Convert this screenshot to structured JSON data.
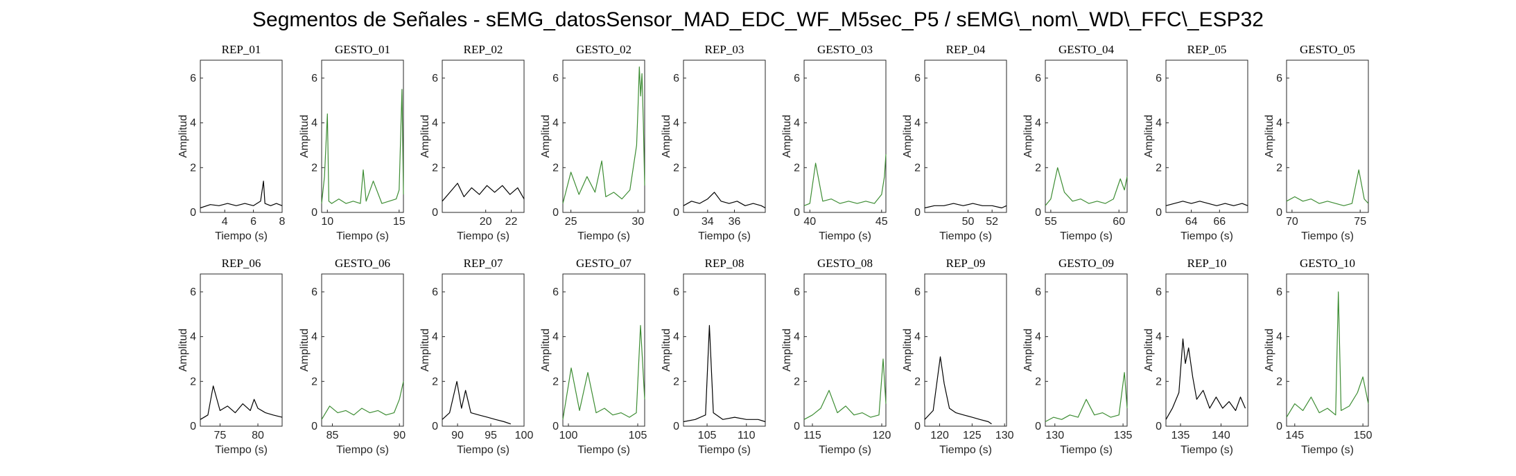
{
  "figure": {
    "title": "Segmentos de Señales - sEMG_datosSensor_MAD_EDC_WF_M5sec_P5 / sEMG\\_nom\\_WD\\_FFC\\_ESP32"
  },
  "colors": {
    "rep": "#000000",
    "gesto": "#3c8c32"
  },
  "chart_data": [
    {
      "type": "line",
      "title": "REP_01",
      "xlabel": "Tiempo (s)",
      "ylabel": "Amplitud",
      "xlim": [
        2.3,
        8
      ],
      "ylim": [
        0,
        6.8
      ],
      "xticks": [
        4,
        6,
        8
      ],
      "yticks": [
        0,
        2,
        4,
        6
      ],
      "color": "rep",
      "series": [
        {
          "x": [
            2.3,
            3.0,
            3.6,
            4.2,
            4.8,
            5.4,
            6.0,
            6.5,
            6.7,
            6.8,
            7.2,
            7.6,
            8.0
          ],
          "y": [
            0.2,
            0.35,
            0.3,
            0.4,
            0.3,
            0.4,
            0.3,
            0.5,
            1.4,
            0.4,
            0.3,
            0.4,
            0.3
          ]
        }
      ]
    },
    {
      "type": "line",
      "title": "GESTO_01",
      "xlabel": "Tiempo (s)",
      "ylabel": "Amplitud",
      "xlim": [
        9.6,
        15.3
      ],
      "ylim": [
        0,
        6.8
      ],
      "xticks": [
        10,
        15
      ],
      "yticks": [
        0,
        2,
        4,
        6
      ],
      "color": "gesto",
      "series": [
        {
          "x": [
            9.6,
            9.8,
            10.0,
            10.1,
            10.3,
            10.8,
            11.3,
            11.8,
            12.3,
            12.5,
            12.7,
            13.2,
            13.8,
            14.3,
            14.8,
            15.0,
            15.2,
            15.3
          ],
          "y": [
            0.4,
            1.6,
            4.4,
            0.5,
            0.4,
            0.6,
            0.4,
            0.5,
            0.4,
            1.9,
            0.5,
            1.4,
            0.4,
            0.5,
            0.6,
            1.0,
            5.5,
            0.8
          ]
        }
      ]
    },
    {
      "type": "line",
      "title": "REP_02",
      "xlabel": "Tiempo (s)",
      "ylabel": "Amplitud",
      "xlim": [
        16.6,
        23
      ],
      "ylim": [
        0,
        6.8
      ],
      "xticks": [
        20,
        22
      ],
      "yticks": [
        0,
        2,
        4,
        6
      ],
      "color": "rep",
      "series": [
        {
          "x": [
            16.6,
            17.2,
            17.8,
            18.3,
            18.9,
            19.5,
            20.1,
            20.7,
            21.3,
            21.9,
            22.5,
            23.0
          ],
          "y": [
            0.5,
            0.9,
            1.3,
            0.7,
            1.1,
            0.8,
            1.2,
            0.9,
            1.2,
            0.8,
            1.1,
            0.6
          ]
        }
      ]
    },
    {
      "type": "line",
      "title": "GESTO_02",
      "xlabel": "Tiempo (s)",
      "ylabel": "Amplitud",
      "xlim": [
        24.4,
        30.5
      ],
      "ylim": [
        0,
        6.8
      ],
      "xticks": [
        25,
        30
      ],
      "yticks": [
        0,
        2,
        4,
        6
      ],
      "color": "gesto",
      "series": [
        {
          "x": [
            24.4,
            25.0,
            25.6,
            26.2,
            26.8,
            27.3,
            27.6,
            28.2,
            28.8,
            29.4,
            29.9,
            30.0,
            30.1,
            30.2,
            30.3,
            30.4,
            30.5
          ],
          "y": [
            0.4,
            1.8,
            0.8,
            1.6,
            0.9,
            2.3,
            0.7,
            0.9,
            0.6,
            1.0,
            3.0,
            4.6,
            6.5,
            5.2,
            6.2,
            4.0,
            1.2
          ]
        }
      ]
    },
    {
      "type": "line",
      "title": "REP_03",
      "xlabel": "Tiempo (s)",
      "ylabel": "Amplitud",
      "xlim": [
        32.2,
        38.3
      ],
      "ylim": [
        0,
        6.8
      ],
      "xticks": [
        34,
        36
      ],
      "yticks": [
        0,
        2,
        4,
        6
      ],
      "color": "rep",
      "series": [
        {
          "x": [
            32.2,
            32.8,
            33.4,
            34.0,
            34.5,
            35.0,
            35.6,
            36.2,
            36.8,
            37.4,
            38.0,
            38.3
          ],
          "y": [
            0.3,
            0.5,
            0.4,
            0.6,
            0.9,
            0.5,
            0.4,
            0.5,
            0.3,
            0.4,
            0.3,
            0.2
          ]
        }
      ]
    },
    {
      "type": "line",
      "title": "GESTO_03",
      "xlabel": "Tiempo (s)",
      "ylabel": "Amplitud",
      "xlim": [
        39.6,
        45.3
      ],
      "ylim": [
        0,
        6.8
      ],
      "xticks": [
        40,
        45
      ],
      "yticks": [
        0,
        2,
        4,
        6
      ],
      "color": "gesto",
      "series": [
        {
          "x": [
            39.6,
            40.0,
            40.4,
            40.9,
            41.5,
            42.1,
            42.7,
            43.3,
            43.9,
            44.5,
            45.0,
            45.2,
            45.3
          ],
          "y": [
            0.3,
            0.4,
            2.2,
            0.5,
            0.6,
            0.4,
            0.5,
            0.4,
            0.5,
            0.4,
            0.8,
            1.6,
            2.6
          ]
        }
      ]
    },
    {
      "type": "line",
      "title": "REP_04",
      "xlabel": "Tiempo (s)",
      "ylabel": "Amplitud",
      "xlim": [
        46.4,
        53.2
      ],
      "ylim": [
        0,
        6.8
      ],
      "xticks": [
        50,
        52
      ],
      "yticks": [
        0,
        2,
        4,
        6
      ],
      "color": "rep",
      "series": [
        {
          "x": [
            46.4,
            47.2,
            48.0,
            48.8,
            49.6,
            50.4,
            51.2,
            52.0,
            52.8,
            53.2
          ],
          "y": [
            0.2,
            0.3,
            0.3,
            0.4,
            0.3,
            0.4,
            0.3,
            0.3,
            0.2,
            0.3
          ]
        }
      ]
    },
    {
      "type": "line",
      "title": "GESTO_04",
      "xlabel": "Tiempo (s)",
      "ylabel": "Amplitud",
      "xlim": [
        54.6,
        60.6
      ],
      "ylim": [
        0,
        6.8
      ],
      "xticks": [
        55,
        60
      ],
      "yticks": [
        0,
        2,
        4,
        6
      ],
      "color": "gesto",
      "series": [
        {
          "x": [
            54.6,
            55.0,
            55.5,
            56.0,
            56.6,
            57.2,
            57.8,
            58.4,
            59.0,
            59.6,
            60.1,
            60.4,
            60.6
          ],
          "y": [
            0.3,
            0.6,
            2.0,
            0.9,
            0.5,
            0.6,
            0.4,
            0.5,
            0.4,
            0.6,
            1.5,
            1.0,
            1.6
          ]
        }
      ]
    },
    {
      "type": "line",
      "title": "REP_05",
      "xlabel": "Tiempo (s)",
      "ylabel": "Amplitud",
      "xlim": [
        62.2,
        68
      ],
      "ylim": [
        0,
        6.8
      ],
      "xticks": [
        64,
        66
      ],
      "yticks": [
        0,
        2,
        4,
        6
      ],
      "color": "rep",
      "series": [
        {
          "x": [
            62.2,
            62.8,
            63.4,
            64.0,
            64.6,
            65.2,
            65.8,
            66.4,
            67.0,
            67.6,
            68.0
          ],
          "y": [
            0.3,
            0.4,
            0.5,
            0.4,
            0.5,
            0.4,
            0.3,
            0.4,
            0.3,
            0.4,
            0.3
          ]
        }
      ]
    },
    {
      "type": "line",
      "title": "GESTO_05",
      "xlabel": "Tiempo (s)",
      "ylabel": "Amplitud",
      "xlim": [
        69.6,
        75.6
      ],
      "ylim": [
        0,
        6.8
      ],
      "xticks": [
        70,
        75
      ],
      "yticks": [
        0,
        2,
        4,
        6
      ],
      "color": "gesto",
      "series": [
        {
          "x": [
            69.6,
            70.2,
            70.8,
            71.4,
            72.0,
            72.6,
            73.2,
            73.8,
            74.4,
            74.9,
            75.3,
            75.6
          ],
          "y": [
            0.5,
            0.7,
            0.5,
            0.6,
            0.4,
            0.5,
            0.4,
            0.3,
            0.4,
            1.9,
            0.6,
            0.4
          ]
        }
      ]
    },
    {
      "type": "line",
      "title": "REP_06",
      "xlabel": "Tiempo (s)",
      "ylabel": "Amplitud",
      "xlim": [
        72.4,
        83.2
      ],
      "ylim": [
        0,
        6.8
      ],
      "xticks": [
        75,
        80
      ],
      "yticks": [
        0,
        2,
        4,
        6
      ],
      "color": "rep",
      "series": [
        {
          "x": [
            72.4,
            73.4,
            74.1,
            75.0,
            76.0,
            77.0,
            78.0,
            79.0,
            79.5,
            80.0,
            81.0,
            82.0,
            83.2
          ],
          "y": [
            0.3,
            0.5,
            1.8,
            0.7,
            0.9,
            0.6,
            1.0,
            0.7,
            1.2,
            0.8,
            0.6,
            0.5,
            0.4
          ]
        }
      ]
    },
    {
      "type": "line",
      "title": "GESTO_06",
      "xlabel": "Tiempo (s)",
      "ylabel": "Amplitud",
      "xlim": [
        84.2,
        90.3
      ],
      "ylim": [
        0,
        6.8
      ],
      "xticks": [
        85,
        90
      ],
      "yticks": [
        0,
        2,
        4,
        6
      ],
      "color": "gesto",
      "series": [
        {
          "x": [
            84.2,
            84.8,
            85.4,
            86.0,
            86.6,
            87.2,
            87.8,
            88.4,
            89.0,
            89.6,
            90.0,
            90.3
          ],
          "y": [
            0.3,
            0.9,
            0.6,
            0.7,
            0.5,
            0.8,
            0.6,
            0.7,
            0.5,
            0.6,
            1.2,
            2.0
          ]
        }
      ]
    },
    {
      "type": "line",
      "title": "REP_07",
      "xlabel": "Tiempo (s)",
      "ylabel": "Amplitud",
      "xlim": [
        87.7,
        100
      ],
      "ylim": [
        0,
        6.8
      ],
      "xticks": [
        90,
        95,
        100
      ],
      "yticks": [
        0,
        2,
        4,
        6
      ],
      "color": "rep",
      "series": [
        {
          "x": [
            87.7,
            88.8,
            89.9,
            90.6,
            91.2,
            92.0,
            93.2,
            94.5,
            95.7,
            97.0,
            98.0
          ],
          "y": [
            0.3,
            0.6,
            2.0,
            0.8,
            1.6,
            0.6,
            0.5,
            0.4,
            0.3,
            0.2,
            0.1
          ]
        }
      ]
    },
    {
      "type": "line",
      "title": "GESTO_07",
      "xlabel": "Tiempo (s)",
      "ylabel": "Amplitud",
      "xlim": [
        99.6,
        105.5
      ],
      "ylim": [
        0,
        6.8
      ],
      "xticks": [
        100,
        105
      ],
      "yticks": [
        0,
        2,
        4,
        6
      ],
      "color": "gesto",
      "series": [
        {
          "x": [
            99.6,
            100.2,
            100.8,
            101.4,
            102.0,
            102.6,
            103.2,
            103.8,
            104.4,
            104.9,
            105.2,
            105.5
          ],
          "y": [
            0.3,
            2.6,
            0.7,
            2.4,
            0.6,
            0.8,
            0.5,
            0.6,
            0.4,
            0.6,
            4.5,
            1.2
          ]
        }
      ]
    },
    {
      "type": "line",
      "title": "REP_08",
      "xlabel": "Tiempo (s)",
      "ylabel": "Amplitud",
      "xlim": [
        102,
        112.4
      ],
      "ylim": [
        0,
        6.8
      ],
      "xticks": [
        105,
        110
      ],
      "yticks": [
        0,
        2,
        4,
        6
      ],
      "color": "rep",
      "series": [
        {
          "x": [
            102.0,
            103.5,
            104.8,
            105.3,
            105.8,
            107.0,
            108.5,
            110.0,
            111.5,
            112.4
          ],
          "y": [
            0.2,
            0.3,
            0.5,
            4.5,
            0.6,
            0.3,
            0.4,
            0.3,
            0.3,
            0.2
          ]
        }
      ]
    },
    {
      "type": "line",
      "title": "GESTO_08",
      "xlabel": "Tiempo (s)",
      "ylabel": "Amplitud",
      "xlim": [
        114.4,
        120.3
      ],
      "ylim": [
        0,
        6.8
      ],
      "xticks": [
        115,
        120
      ],
      "yticks": [
        0,
        2,
        4,
        6
      ],
      "color": "gesto",
      "series": [
        {
          "x": [
            114.4,
            115.0,
            115.6,
            116.2,
            116.8,
            117.4,
            118.0,
            118.6,
            119.2,
            119.8,
            120.1,
            120.3
          ],
          "y": [
            0.3,
            0.5,
            0.8,
            1.6,
            0.6,
            0.9,
            0.5,
            0.6,
            0.4,
            0.5,
            3.0,
            1.0
          ]
        }
      ]
    },
    {
      "type": "line",
      "title": "REP_09",
      "xlabel": "Tiempo (s)",
      "ylabel": "Amplitud",
      "xlim": [
        117.7,
        130.3
      ],
      "ylim": [
        0,
        6.8
      ],
      "xticks": [
        120,
        125,
        130
      ],
      "yticks": [
        0,
        2,
        4,
        6
      ],
      "color": "rep",
      "series": [
        {
          "x": [
            117.7,
            119.0,
            120.1,
            120.7,
            121.5,
            122.5,
            123.7,
            125.0,
            126.2,
            127.5,
            128.0
          ],
          "y": [
            0.3,
            0.7,
            3.1,
            1.9,
            0.8,
            0.6,
            0.5,
            0.4,
            0.3,
            0.2,
            0.1
          ]
        }
      ]
    },
    {
      "type": "line",
      "title": "GESTO_09",
      "xlabel": "Tiempo (s)",
      "ylabel": "Amplitud",
      "xlim": [
        129.3,
        135.3
      ],
      "ylim": [
        0,
        6.8
      ],
      "xticks": [
        130,
        135
      ],
      "yticks": [
        0,
        2,
        4,
        6
      ],
      "color": "gesto",
      "series": [
        {
          "x": [
            129.3,
            129.9,
            130.5,
            131.1,
            131.7,
            132.3,
            132.9,
            133.5,
            134.1,
            134.7,
            135.1,
            135.3
          ],
          "y": [
            0.2,
            0.4,
            0.3,
            0.5,
            0.4,
            1.2,
            0.5,
            0.6,
            0.4,
            0.5,
            2.4,
            0.8
          ]
        }
      ]
    },
    {
      "type": "line",
      "title": "REP_10",
      "xlabel": "Tiempo (s)",
      "ylabel": "Amplitud",
      "xlim": [
        133.2,
        143.3
      ],
      "ylim": [
        0,
        6.8
      ],
      "xticks": [
        135,
        140
      ],
      "yticks": [
        0,
        2,
        4,
        6
      ],
      "color": "rep",
      "series": [
        {
          "x": [
            133.2,
            134.0,
            134.8,
            135.3,
            135.6,
            136.0,
            136.5,
            137.0,
            137.8,
            138.6,
            139.4,
            140.2,
            141.0,
            141.8,
            142.4,
            143.0
          ],
          "y": [
            0.3,
            0.8,
            1.5,
            3.9,
            2.8,
            3.5,
            2.2,
            1.2,
            1.6,
            0.8,
            1.3,
            0.8,
            1.1,
            0.7,
            1.3,
            0.8
          ]
        }
      ]
    },
    {
      "type": "line",
      "title": "GESTO_10",
      "xlabel": "Tiempo (s)",
      "ylabel": "Amplitud",
      "xlim": [
        144.4,
        150.4
      ],
      "ylim": [
        0,
        6.8
      ],
      "xticks": [
        145,
        150
      ],
      "yticks": [
        0,
        2,
        4,
        6
      ],
      "color": "gesto",
      "series": [
        {
          "x": [
            144.4,
            145.0,
            145.6,
            146.2,
            146.8,
            147.4,
            148.0,
            148.2,
            148.4,
            149.0,
            149.6,
            150.0,
            150.4
          ],
          "y": [
            0.4,
            1.0,
            0.7,
            1.3,
            0.6,
            0.8,
            0.5,
            6.0,
            0.7,
            0.9,
            1.5,
            2.2,
            1.0
          ]
        }
      ]
    }
  ]
}
